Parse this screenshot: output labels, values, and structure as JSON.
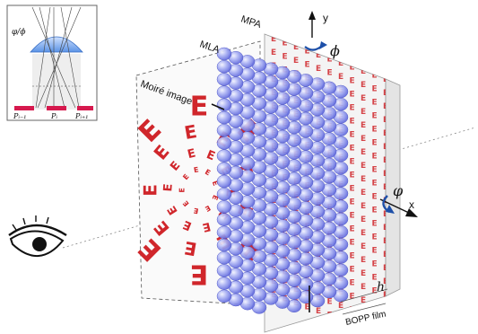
{
  "labels": {
    "mla": "MLA",
    "mpa": "MPA",
    "moire_image": "Moiré image",
    "y_axis": "y",
    "x_axis": "x",
    "phi_upper": "ϕ",
    "phi_lower": "φ",
    "h": "h",
    "bopp_film": "BOPP film"
  },
  "inset": {
    "ratio_label": "φ/ϕ",
    "pixel_labels": [
      "Pᵢ₋₁",
      "Pᵢ",
      "Pᵢ₊₁"
    ]
  },
  "pattern": {
    "letter": "E",
    "colors": {
      "letter": "#d0262b",
      "lens": "#6f78e6",
      "lens_edge": "#4a52c4",
      "film": "#f3f3f3",
      "axis": "#111111"
    }
  }
}
